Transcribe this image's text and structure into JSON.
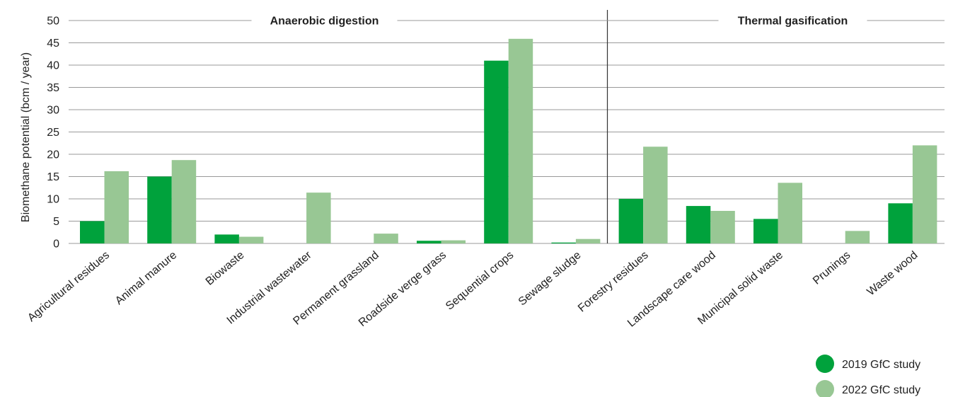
{
  "chart_data": {
    "type": "bar",
    "ylabel": "Biomethane potential (bcm / year)",
    "ylim": [
      0,
      50
    ],
    "yticks": [
      0,
      5,
      10,
      15,
      20,
      25,
      30,
      35,
      40,
      45,
      50
    ],
    "grid": true,
    "legend_position": "bottom-right",
    "categories": [
      "Agricultural residues",
      "Animal manure",
      "Biowaste",
      "Industrial wastewater",
      "Permanent grassland",
      "Roadside verge grass",
      "Sequential crops",
      "Sewage sludge",
      "Forestry residues",
      "Landscape care wood",
      "Municipal solid waste",
      "Prunings",
      "Waste wood"
    ],
    "groups": [
      {
        "label": "Anaerobic digestion",
        "categories": [
          "Agricultural residues",
          "Animal manure",
          "Biowaste",
          "Industrial wastewater",
          "Permanent grassland",
          "Roadside verge grass",
          "Sequential crops",
          "Sewage sludge"
        ]
      },
      {
        "label": "Thermal gasification",
        "categories": [
          "Forestry residues",
          "Landscape care wood",
          "Municipal solid waste",
          "Prunings",
          "Waste wood"
        ]
      }
    ],
    "series": [
      {
        "name": "2019 GfC study",
        "color": "#00a23c",
        "values": [
          5.0,
          15.0,
          2.0,
          0,
          0,
          0.6,
          41.0,
          0.2,
          10.0,
          8.4,
          5.5,
          0,
          9.0
        ]
      },
      {
        "name": "2022 GfC study",
        "color": "#98c794",
        "values": [
          16.2,
          18.7,
          1.5,
          11.4,
          2.2,
          0.7,
          45.9,
          1.0,
          21.7,
          7.3,
          13.6,
          2.8,
          22.0
        ]
      }
    ]
  }
}
